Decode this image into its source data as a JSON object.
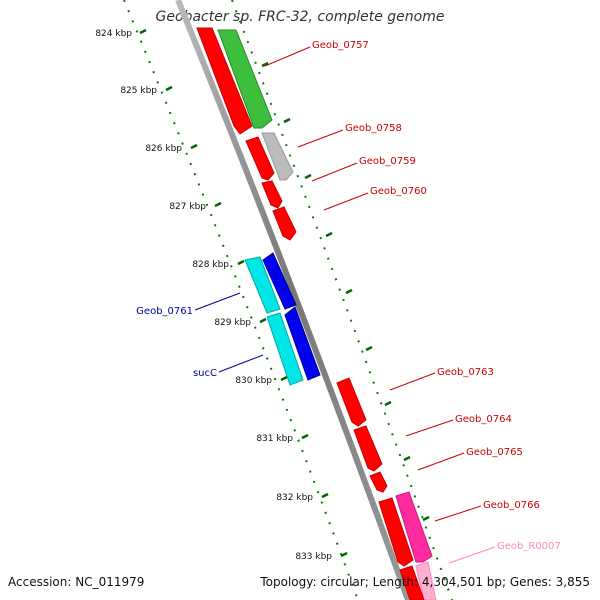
{
  "title": "Geobacter sp. FRC-32, complete genome",
  "footer": {
    "accession": "Accession: NC_011979",
    "summary": "Topology: circular; Length: 4,304,501 bp; Genes: 3,855"
  },
  "colors": {
    "forward_cds": "#ff0000",
    "rna": "#ff99cc",
    "backbone": "#808080",
    "ticks": "#008000",
    "label_forward": "#cc0000",
    "label_reverse": "#000099"
  },
  "scale_labels": [
    "824 kbp",
    "825 kbp",
    "826 kbp",
    "827 kbp",
    "828 kbp",
    "829 kbp",
    "830 kbp",
    "831 kbp",
    "832 kbp",
    "833 kbp"
  ],
  "gene_labels": [
    {
      "text": "Geob_0757",
      "color": "#cc0000"
    },
    {
      "text": "Geob_0758",
      "color": "#cc0000"
    },
    {
      "text": "Geob_0759",
      "color": "#cc0000"
    },
    {
      "text": "Geob_0760",
      "color": "#cc0000"
    },
    {
      "text": "Geob_0761",
      "color": "#000099"
    },
    {
      "text": "sucC",
      "color": "#000099"
    },
    {
      "text": "Geob_0763",
      "color": "#cc0000"
    },
    {
      "text": "Geob_0764",
      "color": "#cc0000"
    },
    {
      "text": "Geob_0765",
      "color": "#cc0000"
    },
    {
      "text": "Geob_0766",
      "color": "#cc0000"
    },
    {
      "text": "Geob_R0007",
      "color": "#ff88bb"
    }
  ]
}
